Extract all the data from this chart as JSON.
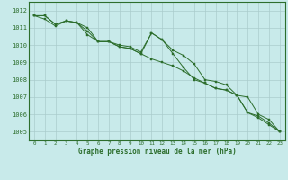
{
  "title": "Graphe pression niveau de la mer (hPa)",
  "bg_color": "#c8eaea",
  "grid_color": "#aacccc",
  "line_color": "#2d6e2d",
  "x": [
    0,
    1,
    2,
    3,
    4,
    5,
    6,
    7,
    8,
    9,
    10,
    11,
    12,
    13,
    14,
    15,
    16,
    17,
    18,
    19,
    20,
    21,
    22,
    23
  ],
  "line1": [
    1011.7,
    1011.7,
    1011.2,
    1011.4,
    1011.3,
    1011.0,
    1010.2,
    1010.2,
    1009.9,
    1009.8,
    1009.5,
    1010.7,
    1010.3,
    1009.5,
    1008.7,
    1008.0,
    1007.8,
    1007.5,
    1007.4,
    1007.1,
    1006.1,
    1005.9,
    1005.5,
    1005.0
  ],
  "line2": [
    1011.7,
    1011.7,
    1011.2,
    1011.4,
    1011.3,
    1010.8,
    1010.2,
    1010.2,
    1009.9,
    1009.8,
    1009.5,
    1009.2,
    1009.0,
    1008.8,
    1008.5,
    1008.1,
    1007.8,
    1007.5,
    1007.4,
    1007.1,
    1006.1,
    1005.8,
    1005.4,
    1005.0
  ],
  "line3": [
    1011.7,
    1011.5,
    1011.1,
    1011.4,
    1011.3,
    1010.6,
    1010.2,
    1010.2,
    1010.0,
    1009.9,
    1009.6,
    1010.7,
    1010.3,
    1009.7,
    1009.4,
    1008.9,
    1008.0,
    1007.9,
    1007.7,
    1007.1,
    1007.0,
    1006.0,
    1005.7,
    1005.0
  ],
  "ylim": [
    1004.5,
    1012.5
  ],
  "yticks": [
    1005,
    1006,
    1007,
    1008,
    1009,
    1010,
    1011,
    1012
  ],
  "xlim": [
    -0.5,
    23.5
  ],
  "figsize": [
    3.2,
    2.0
  ],
  "dpi": 100
}
